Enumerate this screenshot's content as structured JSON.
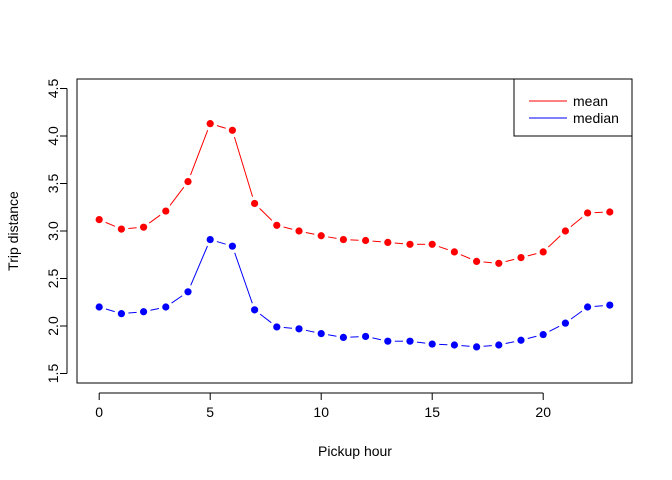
{
  "chart_data": {
    "type": "line",
    "title": "",
    "xlabel": "Pickup hour",
    "ylabel": "Trip distance",
    "xlim": [
      -1,
      24
    ],
    "ylim": [
      1.4,
      4.6
    ],
    "x_ticks": [
      0,
      5,
      10,
      15,
      20
    ],
    "y_ticks": [
      1.5,
      2.0,
      2.5,
      3.0,
      3.5,
      4.0,
      4.5
    ],
    "x_tick_labels": [
      "0",
      "5",
      "10",
      "15",
      "20"
    ],
    "y_tick_labels": [
      "1.5",
      "2.0",
      "2.5",
      "3.0",
      "3.5",
      "4.0",
      "4.5"
    ],
    "grid": false,
    "legend_position": "top-right",
    "x": [
      0,
      1,
      2,
      3,
      4,
      5,
      6,
      7,
      8,
      9,
      10,
      11,
      12,
      13,
      14,
      15,
      16,
      17,
      18,
      19,
      20,
      21,
      22,
      23
    ],
    "series": [
      {
        "name": "mean",
        "color": "#ff0000",
        "values": [
          3.12,
          3.02,
          3.04,
          3.21,
          3.52,
          4.13,
          4.06,
          3.29,
          3.06,
          3.0,
          2.95,
          2.91,
          2.9,
          2.88,
          2.86,
          2.86,
          2.78,
          2.68,
          2.66,
          2.72,
          2.78,
          3.0,
          3.19,
          3.2
        ]
      },
      {
        "name": "median",
        "color": "#0000ff",
        "values": [
          2.2,
          2.13,
          2.15,
          2.2,
          2.36,
          2.91,
          2.84,
          2.17,
          1.99,
          1.97,
          1.92,
          1.88,
          1.89,
          1.84,
          1.84,
          1.81,
          1.8,
          1.78,
          1.8,
          1.85,
          1.91,
          2.03,
          2.2,
          2.22
        ]
      }
    ]
  }
}
